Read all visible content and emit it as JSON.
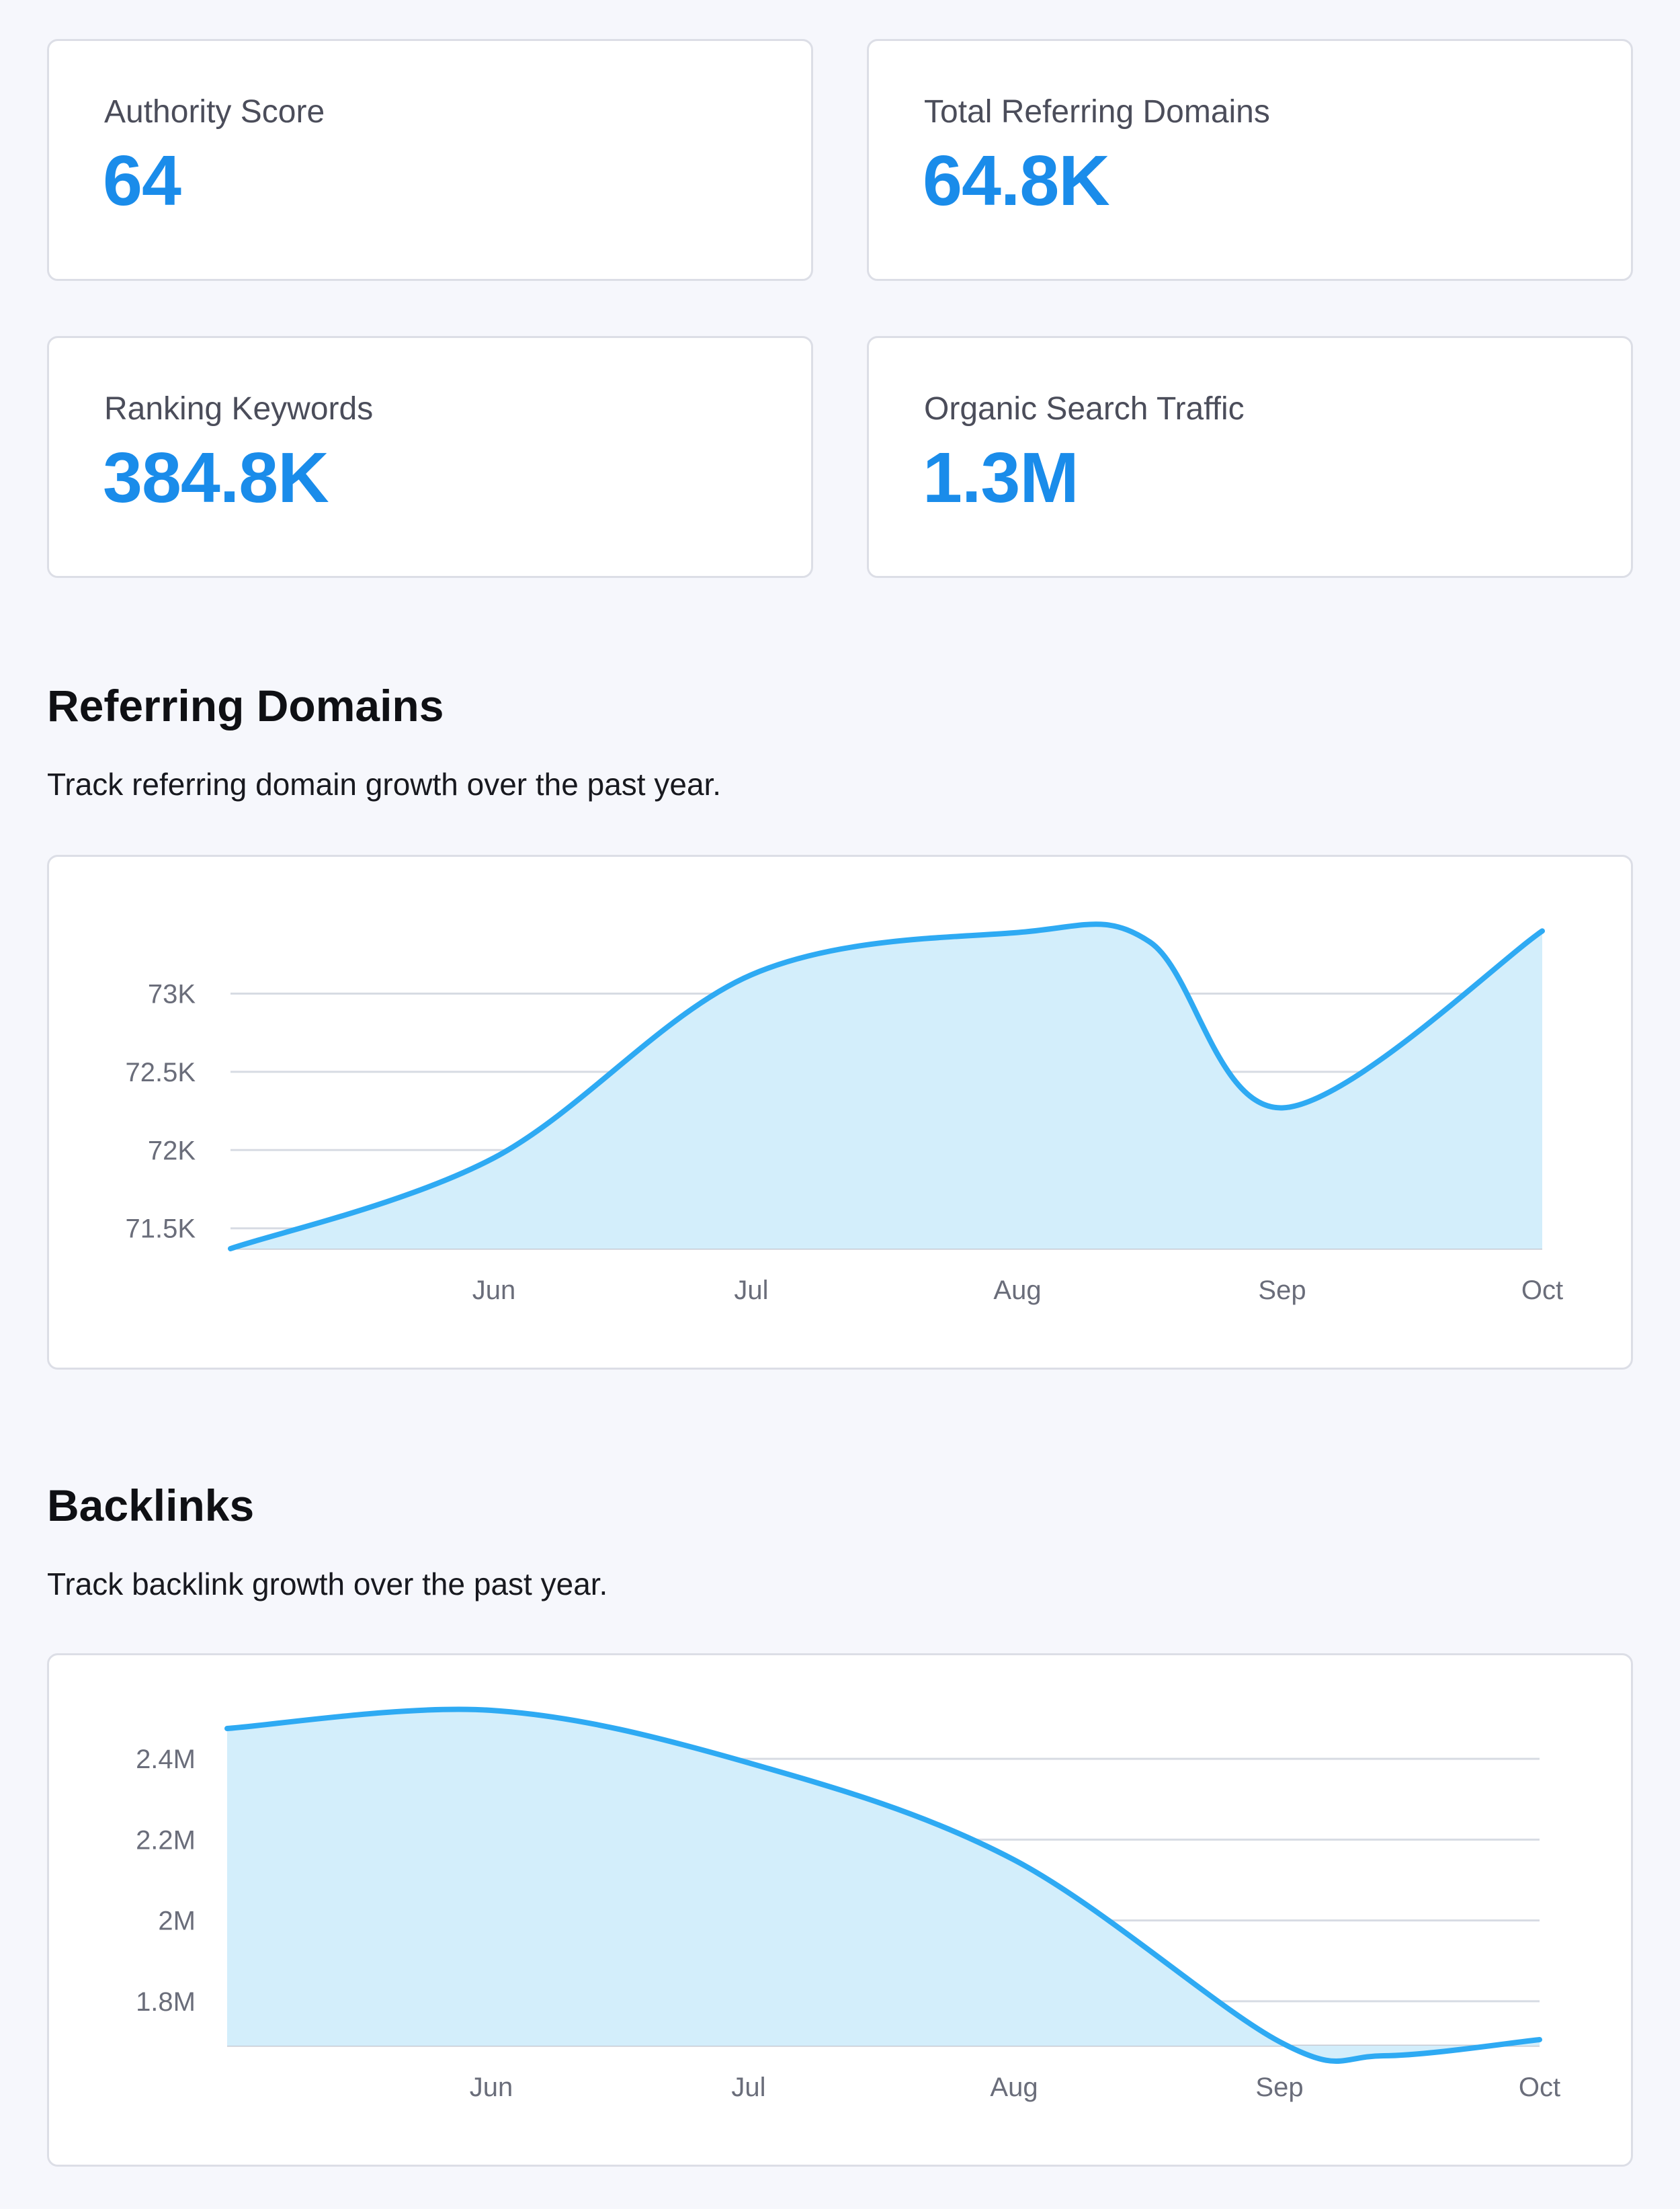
{
  "metrics": [
    {
      "label": "Authority Score",
      "value": "64"
    },
    {
      "label": "Total Referring Domains",
      "value": "64.8K"
    },
    {
      "label": "Ranking Keywords",
      "value": "384.8K"
    },
    {
      "label": "Organic Search Traffic",
      "value": "1.3M"
    }
  ],
  "sections": {
    "referring": {
      "title": "Referring Domains",
      "description": "Track referring domain growth over the past year."
    },
    "backlinks": {
      "title": "Backlinks",
      "description": "Track backlink growth over the past year."
    }
  },
  "colors": {
    "accent": "#1a8cea",
    "line": "#2eaaf3",
    "fill": "#d3eefb",
    "grid": "#d7dbe3"
  },
  "chart_data": [
    {
      "type": "area",
      "title": "",
      "xlabel": "",
      "ylabel": "",
      "x_ticks": [
        "Jun",
        "Jul",
        "Aug",
        "Sep",
        "Oct"
      ],
      "y_ticks": [
        {
          "value": 71500,
          "label": "71.5K"
        },
        {
          "value": 72000,
          "label": "72K"
        },
        {
          "value": 72500,
          "label": "72.5K"
        },
        {
          "value": 73000,
          "label": "73K"
        }
      ],
      "ylim": [
        71370,
        73410
      ],
      "grid": true,
      "series": [
        {
          "x": [
            0,
            1,
            2,
            3,
            3.5,
            4,
            5
          ],
          "values": [
            71370,
            71950,
            73120,
            73390,
            73330,
            72270,
            73400
          ]
        }
      ]
    },
    {
      "type": "area",
      "title": "",
      "xlabel": "",
      "ylabel": "",
      "x_ticks": [
        "Jun",
        "Jul",
        "Aug",
        "Sep",
        "Oct"
      ],
      "y_ticks": [
        {
          "value": 1800000,
          "label": "1.8M"
        },
        {
          "value": 2000000,
          "label": "2M"
        },
        {
          "value": 2200000,
          "label": "2.2M"
        },
        {
          "value": 2400000,
          "label": "2.4M"
        }
      ],
      "ylim": [
        1690000,
        2490000
      ],
      "grid": true,
      "series": [
        {
          "x": [
            0,
            1,
            2,
            3,
            4,
            4.4,
            5
          ],
          "values": [
            2475000,
            2520000,
            2390000,
            2150000,
            1700000,
            1665000,
            1705000
          ]
        }
      ]
    }
  ]
}
